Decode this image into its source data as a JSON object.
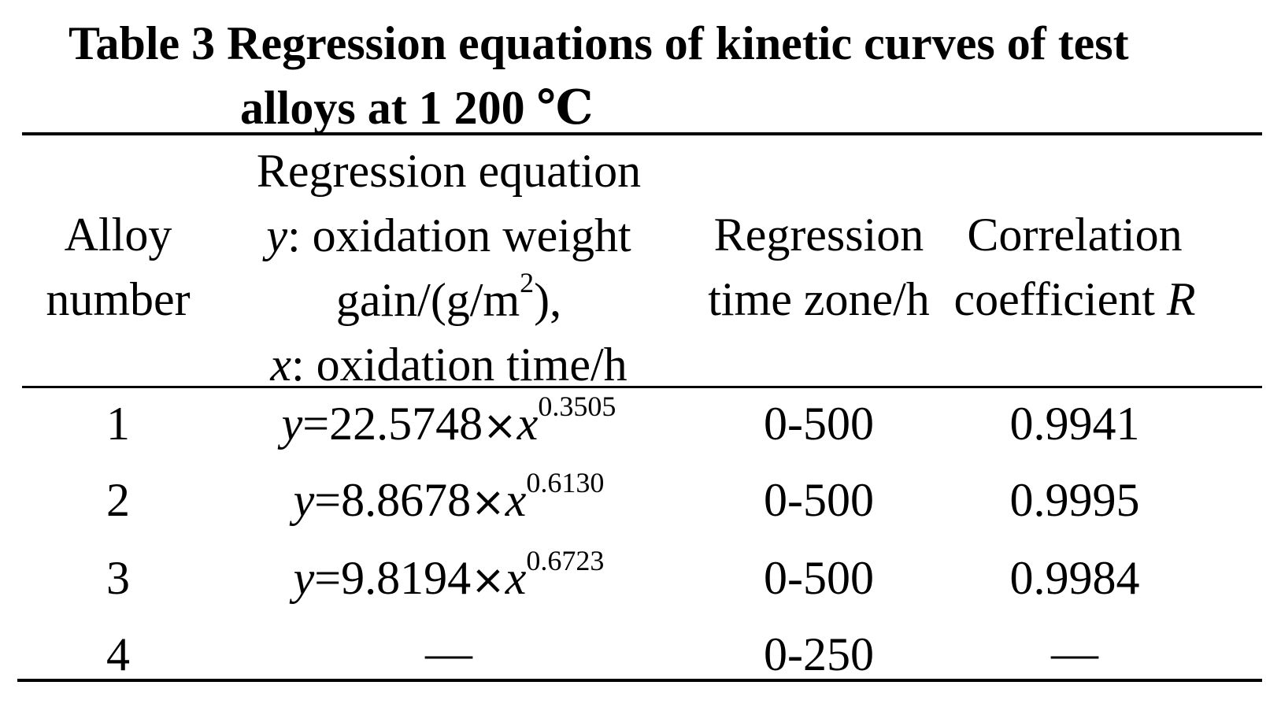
{
  "title": {
    "line1": "Table 3 Regression equations of kinetic curves of test",
    "line2": "alloys at 1 200 ℃"
  },
  "headers": {
    "alloy": [
      "Alloy",
      "number"
    ],
    "equation": {
      "line1": "Regression equation",
      "line2_var": "y",
      "line2_text": ": oxidation weight",
      "line3_pre": "gain/(g/m",
      "line3_sup": "2",
      "line3_post": "),",
      "line4_var": "x",
      "line4_text": ": oxidation time/h"
    },
    "time_zone": [
      "Regression",
      "time zone/h"
    ],
    "correlation": {
      "line1": "Correlation",
      "line2_text": "coefficient ",
      "line2_var": "R"
    }
  },
  "rows": [
    {
      "alloy": "1",
      "y_var": "y",
      "coef": "=22.5748",
      "times": "×",
      "x_var": "x",
      "exponent": "0.3505",
      "time_zone": "0-500",
      "r": "0.9941"
    },
    {
      "alloy": "2",
      "y_var": "y",
      "coef": "=8.8678",
      "times": "×",
      "x_var": "x",
      "exponent": "0.6130",
      "time_zone": "0-500",
      "r": "0.9995"
    },
    {
      "alloy": "3",
      "y_var": "y",
      "coef": "=9.8194",
      "times": "×",
      "x_var": "x",
      "exponent": "0.6723",
      "time_zone": "0-500",
      "r": "0.9984"
    },
    {
      "alloy": "4",
      "equation_dash": "—",
      "time_zone": "0-250",
      "r": "—"
    }
  ]
}
